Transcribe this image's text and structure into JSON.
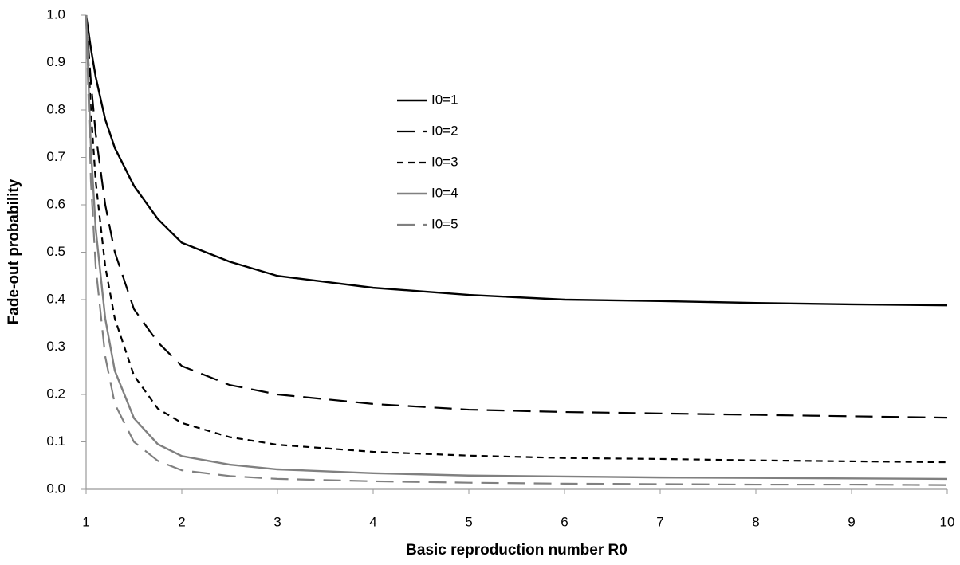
{
  "chart_data": {
    "type": "line",
    "xlabel": "Basic reproduction number R0",
    "ylabel": "Fade-out probability",
    "x": [
      1,
      1.05,
      1.1,
      1.2,
      1.3,
      1.5,
      1.75,
      2,
      2.5,
      3,
      4,
      5,
      6,
      7,
      8,
      9,
      10
    ],
    "series": [
      {
        "name": "I0=1",
        "color": "#000000",
        "dash": "solid",
        "values": [
          1.0,
          0.93,
          0.87,
          0.78,
          0.72,
          0.64,
          0.57,
          0.52,
          0.48,
          0.45,
          0.425,
          0.41,
          0.4,
          0.397,
          0.393,
          0.39,
          0.388
        ]
      },
      {
        "name": "I0=2",
        "color": "#000000",
        "dash": "long",
        "values": [
          1.0,
          0.86,
          0.75,
          0.6,
          0.5,
          0.38,
          0.31,
          0.26,
          0.22,
          0.2,
          0.18,
          0.168,
          0.163,
          0.16,
          0.157,
          0.154,
          0.151
        ]
      },
      {
        "name": "I0=3",
        "color": "#000000",
        "dash": "short",
        "values": [
          1.0,
          0.8,
          0.65,
          0.47,
          0.36,
          0.24,
          0.17,
          0.14,
          0.11,
          0.094,
          0.079,
          0.071,
          0.066,
          0.064,
          0.061,
          0.059,
          0.057
        ]
      },
      {
        "name": "I0=4",
        "color": "#808080",
        "dash": "solid",
        "values": [
          1.0,
          0.72,
          0.55,
          0.36,
          0.25,
          0.15,
          0.095,
          0.07,
          0.052,
          0.042,
          0.034,
          0.029,
          0.027,
          0.025,
          0.024,
          0.023,
          0.022
        ]
      },
      {
        "name": "I0=5",
        "color": "#808080",
        "dash": "long",
        "values": [
          1.0,
          0.65,
          0.47,
          0.28,
          0.18,
          0.1,
          0.06,
          0.04,
          0.028,
          0.022,
          0.017,
          0.014,
          0.012,
          0.011,
          0.01,
          0.01,
          0.009
        ]
      }
    ],
    "xlim": [
      1,
      10
    ],
    "xticks": [
      1,
      2,
      3,
      4,
      5,
      6,
      7,
      8,
      9,
      10
    ],
    "ylim": [
      0,
      1
    ],
    "yticks": [
      {
        "value": 0,
        "label": "0.0"
      },
      0.1,
      0.2,
      0.3,
      0.4,
      0.5,
      0.6,
      0.7,
      0.8,
      0.9,
      {
        "value": 1,
        "label": "1.0"
      }
    ],
    "grid": false
  }
}
